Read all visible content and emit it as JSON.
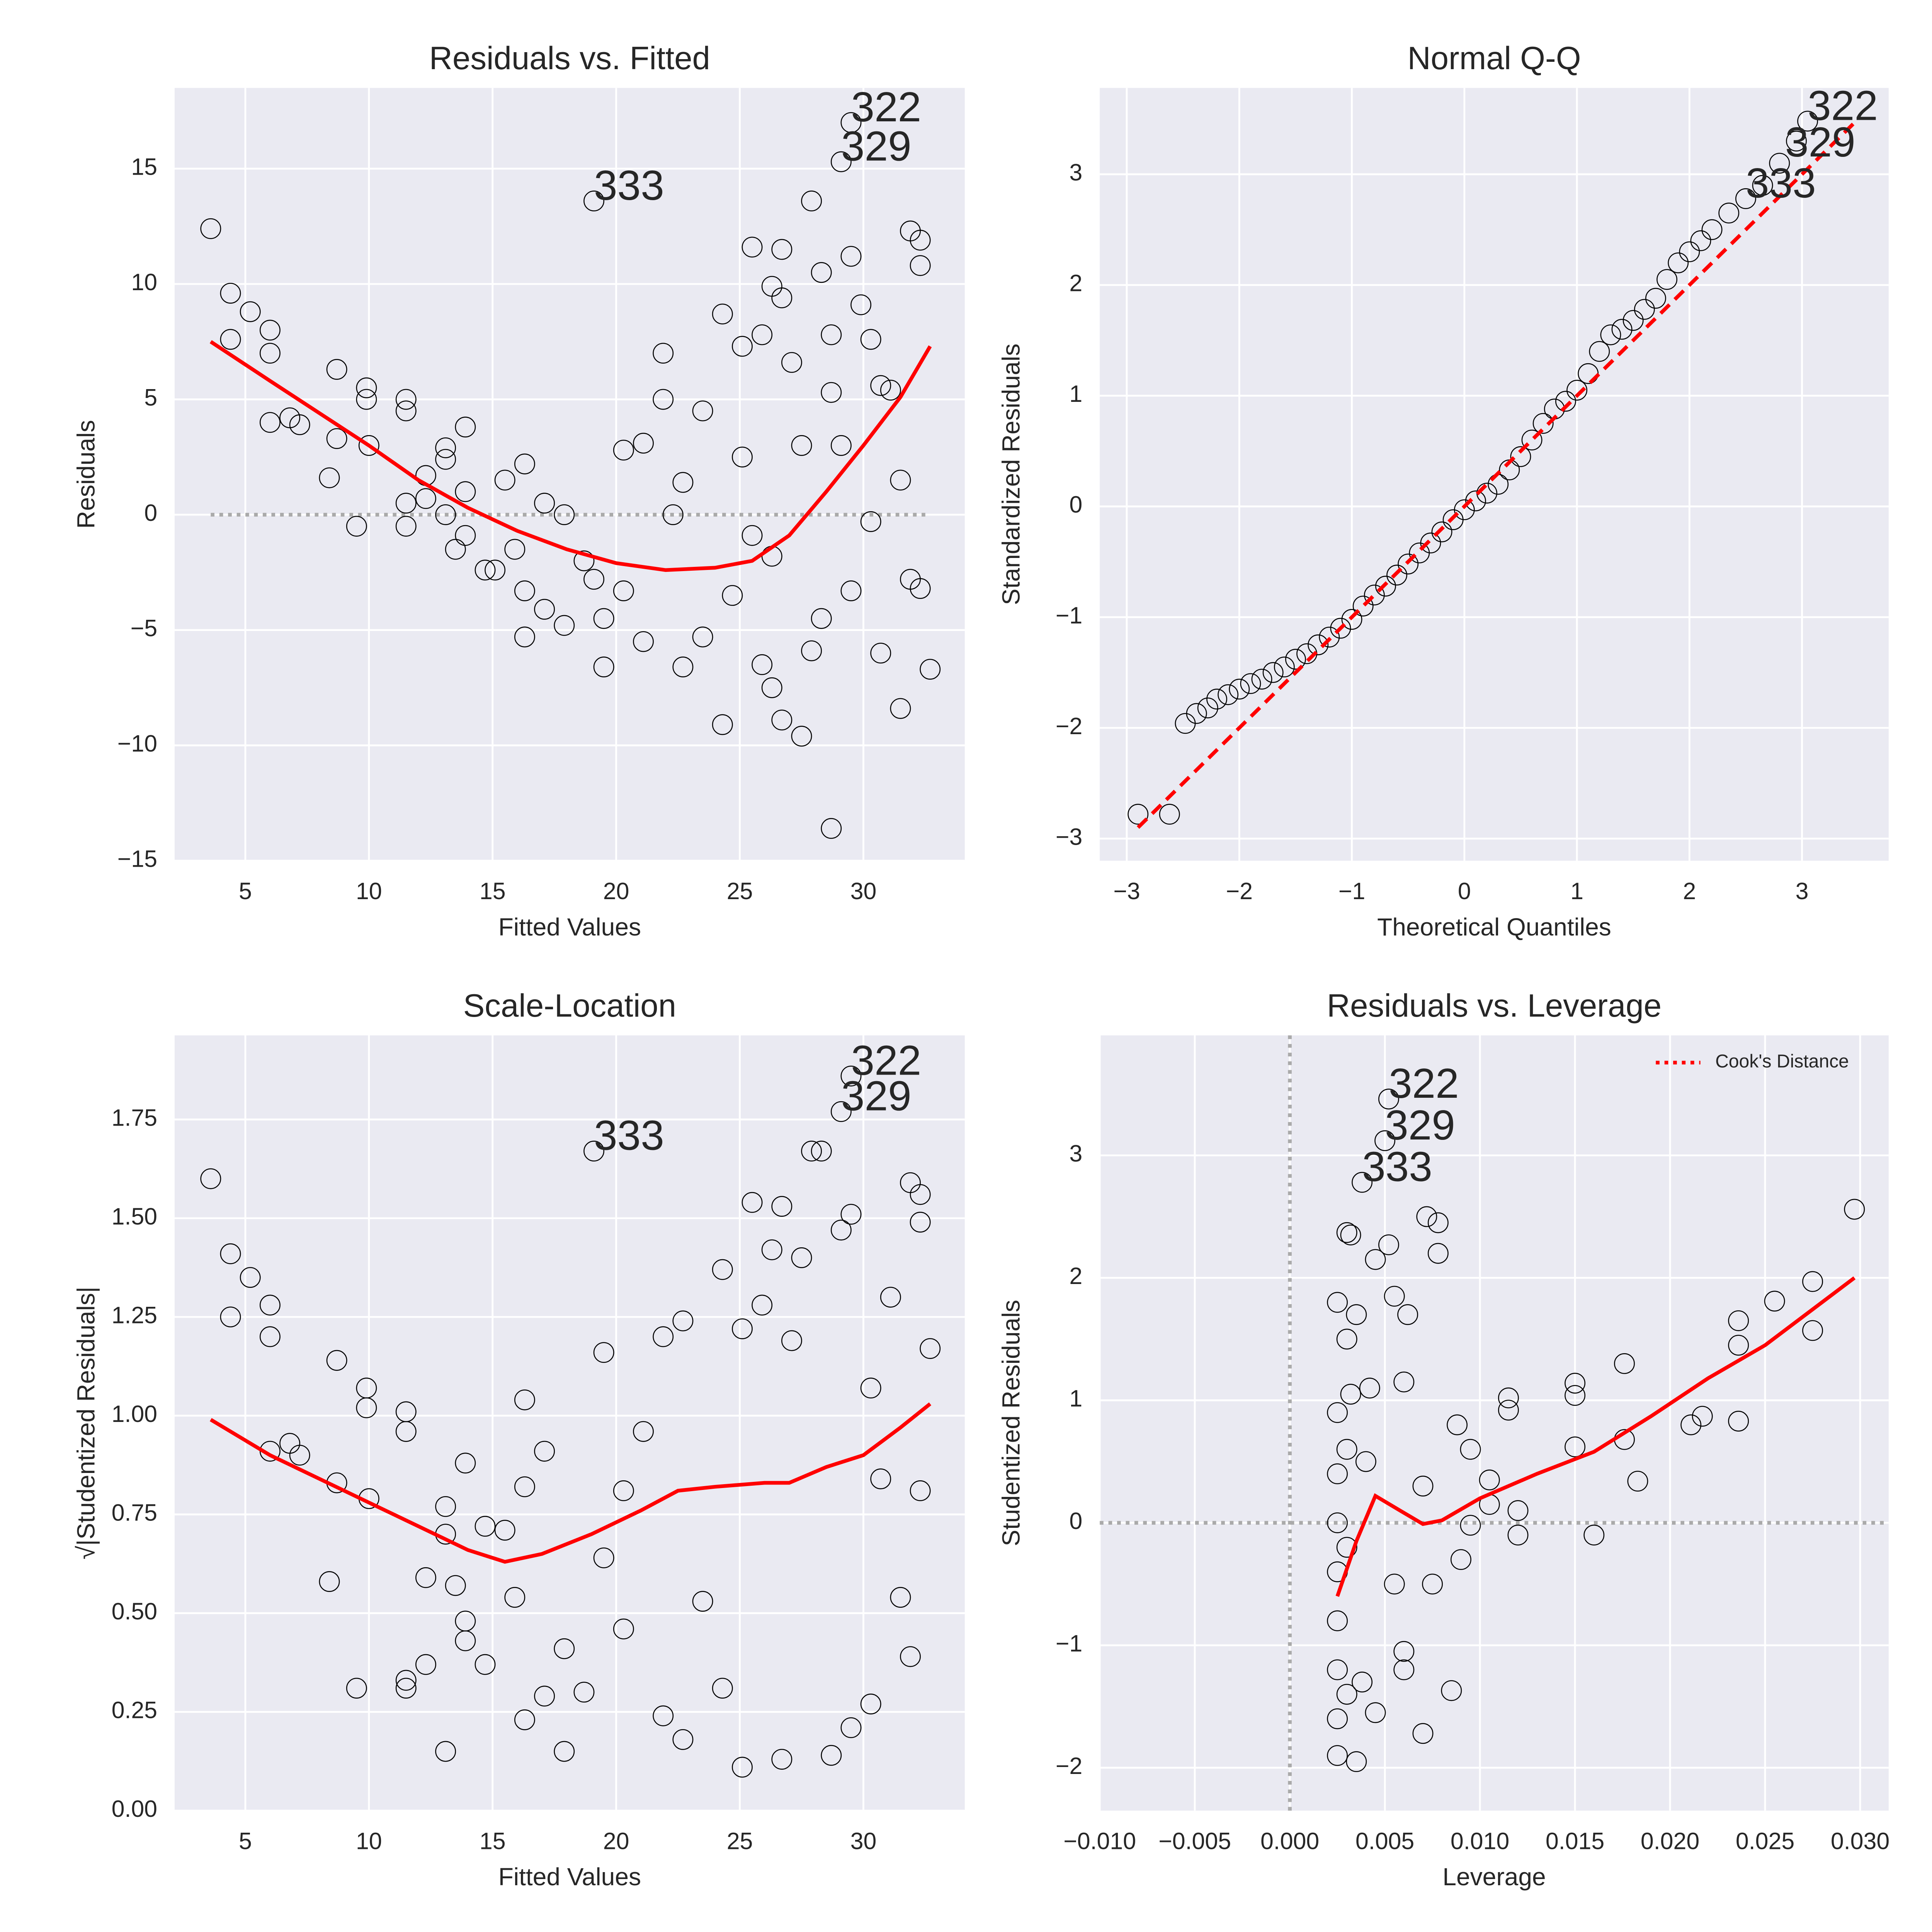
{
  "chart_data": [
    {
      "type": "scatter",
      "title": "Residuals vs. Fitted",
      "xlabel": "Fitted Values",
      "ylabel": "Residuals",
      "xlim": [
        2.14,
        34.1
      ],
      "ylim": [
        -15,
        18.5
      ],
      "xticks": [
        5,
        10,
        15,
        20,
        25,
        30
      ],
      "yticks": [
        {
          "value": -15,
          "label": "−15"
        },
        {
          "value": -10,
          "label": "−10"
        },
        {
          "value": -5,
          "label": "−5"
        },
        0,
        5,
        10,
        15
      ],
      "grid": true,
      "points": {
        "edgecolor": "#000000",
        "x": [
          3.6,
          4.4,
          4.4,
          5.2,
          6,
          6,
          6,
          6.8,
          7.2,
          8.4,
          8.7,
          8.7,
          9.5,
          9.9,
          9.9,
          10,
          11.5,
          11.5,
          11.5,
          11.5,
          12.3,
          12.3,
          13.1,
          13.1,
          13.1,
          13.5,
          13.9,
          13.9,
          13.9,
          14.7,
          15.1,
          15.5,
          15.9,
          16.3,
          16.3,
          16.3,
          17.1,
          17.1,
          17.9,
          17.9,
          18.7,
          19.1,
          19.1,
          19.5,
          19.5,
          20.3,
          20.3,
          21.1,
          21.1,
          21.9,
          21.9,
          22.3,
          22.7,
          22.7,
          23.5,
          23.5,
          24.3,
          24.3,
          24.7,
          25.1,
          25.1,
          25.5,
          25.5,
          25.9,
          25.9,
          26.3,
          26.3,
          26.7,
          26.7,
          26.7,
          27.1,
          27.5,
          27.9,
          27.9,
          28.3,
          28.3,
          28.7,
          28.7,
          29.1,
          29.1,
          29.5,
          29.5,
          29.5,
          30.3,
          30.3,
          30.7,
          31.1,
          31.5,
          31.5,
          31.9,
          31.9,
          32.3,
          32.3,
          32.7,
          32.3,
          30.7,
          29.9,
          28.7,
          27.5,
          26.3
        ],
        "y": [
          12.4,
          9.6,
          7.6,
          8.8,
          8,
          7,
          4,
          4.2,
          3.9,
          1.6,
          6.3,
          3.3,
          -0.5,
          5.5,
          5,
          3,
          5,
          4.5,
          0.5,
          -0.5,
          0.7,
          1.7,
          2.9,
          2.4,
          0,
          -1.5,
          3.8,
          1,
          -0.9,
          -2.4,
          -2.4,
          1.5,
          -1.5,
          2.2,
          -3.3,
          -5.3,
          0.5,
          -4.1,
          -4.8,
          0,
          -2,
          13.6,
          -2.8,
          -6.6,
          -4.5,
          2.8,
          -3.3,
          -5.5,
          3.1,
          7,
          5,
          0,
          -6.6,
          1.4,
          4.5,
          -5.3,
          8.7,
          -9.1,
          -3.5,
          7.3,
          2.5,
          11.6,
          -0.9,
          7.8,
          -6.5,
          9.9,
          -7.5,
          9.4,
          -8.9,
          11.5,
          6.6,
          -9.6,
          13.6,
          -5.9,
          10.5,
          -4.5,
          -13.6,
          7.8,
          15.3,
          3,
          11.2,
          17,
          -3.3,
          7.6,
          -0.3,
          -6,
          5.4,
          -8.4,
          1.5,
          12.3,
          -2.8,
          -3.2,
          11.9,
          -6.7,
          10.8,
          5.6,
          9.1,
          5.3,
          3,
          -1.8
        ]
      },
      "lines": [
        {
          "color": "#ff0000",
          "style": "solid",
          "x": [
            3.6,
            6,
            8,
            10,
            12,
            14,
            16,
            18,
            20,
            22,
            24,
            25.5,
            27,
            28.5,
            30,
            31.5,
            32.7
          ],
          "y": [
            7.5,
            5.8,
            4.4,
            3,
            1.5,
            0.3,
            -0.7,
            -1.5,
            -2.1,
            -2.4,
            -2.3,
            -2,
            -0.9,
            1,
            3,
            5.1,
            7.3
          ]
        }
      ],
      "hlines": [
        {
          "y": 0,
          "xrange": [
            3.6,
            32.7
          ],
          "color": "#aaaaaa",
          "style": "dotted"
        }
      ],
      "annotations": [
        {
          "text": "322",
          "x": 29.5,
          "y": 17
        },
        {
          "text": "329",
          "x": 29.1,
          "y": 15.3
        },
        {
          "text": "333",
          "x": 19.1,
          "y": 13.6
        }
      ]
    },
    {
      "type": "scatter",
      "title": "Normal Q-Q",
      "xlabel": "Theoretical Quantiles",
      "ylabel": "Standardized Residuals",
      "xlim": [
        -3.24,
        3.77
      ],
      "ylim": [
        -3.2,
        3.78
      ],
      "xticks": [
        {
          "value": -3,
          "label": "−3"
        },
        {
          "value": -2,
          "label": "−2"
        },
        {
          "value": -1,
          "label": "−1"
        },
        0,
        1,
        2,
        3
      ],
      "yticks": [
        {
          "value": -3,
          "label": "−3"
        },
        {
          "value": -2,
          "label": "−2"
        },
        {
          "value": -1,
          "label": "−1"
        },
        0,
        1,
        2,
        3
      ],
      "grid": true,
      "points": {
        "edgecolor": "#000000",
        "x": [
          -2.9,
          -2.62,
          -2.48,
          -2.38,
          -2.28,
          -2.2,
          -2.1,
          -2,
          -1.9,
          -1.8,
          -1.7,
          -1.6,
          -1.5,
          -1.4,
          -1.3,
          -1.2,
          -1.1,
          -1,
          -0.9,
          -0.8,
          -0.7,
          -0.6,
          -0.5,
          -0.4,
          -0.3,
          -0.2,
          -0.1,
          0,
          0.1,
          0.2,
          0.3,
          0.4,
          0.5,
          0.6,
          0.7,
          0.8,
          0.9,
          1,
          1.1,
          1.2,
          1.3,
          1.4,
          1.5,
          1.6,
          1.7,
          1.8,
          1.9,
          2,
          2.1,
          2.2,
          2.35,
          2.5,
          2.65,
          2.8,
          2.95,
          3.05
        ],
        "y": [
          -2.78,
          -2.78,
          -1.96,
          -1.87,
          -1.82,
          -1.74,
          -1.7,
          -1.65,
          -1.6,
          -1.56,
          -1.5,
          -1.45,
          -1.38,
          -1.33,
          -1.25,
          -1.18,
          -1.1,
          -1.02,
          -0.9,
          -0.8,
          -0.72,
          -0.62,
          -0.52,
          -0.42,
          -0.33,
          -0.23,
          -0.12,
          -0.03,
          0.05,
          0.12,
          0.2,
          0.33,
          0.45,
          0.6,
          0.75,
          0.88,
          0.95,
          1.05,
          1.2,
          1.4,
          1.55,
          1.6,
          1.68,
          1.78,
          1.88,
          2.05,
          2.2,
          2.3,
          2.4,
          2.5,
          2.65,
          2.78,
          2.9,
          3.1,
          3.3,
          3.48
        ]
      },
      "lines": [
        {
          "color": "#ff0000",
          "style": "dashed",
          "x": [
            -2.9,
            3.5
          ],
          "y": [
            -2.9,
            3.5
          ]
        }
      ],
      "annotations": [
        {
          "text": "322",
          "x": 3.05,
          "y": 3.48
        },
        {
          "text": "329",
          "x": 2.85,
          "y": 3.15
        },
        {
          "text": "333",
          "x": 2.5,
          "y": 2.78
        }
      ]
    },
    {
      "type": "scatter",
      "title": "Scale-Location",
      "xlabel": "Fitted Values",
      "ylabel": "√|Studentized Residuals|",
      "xlim": [
        2.14,
        34.1
      ],
      "ylim": [
        0,
        1.963
      ],
      "xticks": [
        5,
        10,
        15,
        20,
        25,
        30
      ],
      "yticks": [
        {
          "value": 0,
          "label": "0.00"
        },
        0.25,
        {
          "value": 0.5,
          "label": "0.50"
        },
        0.75,
        {
          "value": 1,
          "label": "1.00"
        },
        1.25,
        {
          "value": 1.5,
          "label": "1.50"
        },
        1.75
      ],
      "grid": true,
      "points": {
        "edgecolor": "#000000",
        "x": [
          3.6,
          4.4,
          4.4,
          5.2,
          6,
          6,
          6,
          6.8,
          7.2,
          8.4,
          8.7,
          8.7,
          9.5,
          9.9,
          9.9,
          10,
          11.5,
          11.5,
          11.5,
          11.5,
          12.3,
          12.3,
          13.1,
          13.1,
          13.1,
          13.5,
          13.9,
          13.9,
          13.9,
          14.7,
          14.7,
          15.5,
          15.9,
          16.3,
          16.3,
          16.3,
          17.1,
          17.1,
          17.9,
          17.9,
          18.7,
          19.1,
          19.5,
          19.5,
          20.3,
          20.3,
          21.1,
          21.9,
          21.9,
          22.7,
          22.7,
          23.5,
          24.3,
          24.3,
          25.1,
          25.1,
          25.5,
          25.9,
          26.3,
          26.7,
          26.7,
          27.1,
          27.5,
          27.9,
          28.3,
          28.7,
          29.1,
          29.1,
          29.5,
          29.5,
          29.5,
          30.3,
          30.7,
          31.1,
          31.5,
          31.9,
          31.9,
          32.3,
          32.3,
          32.7,
          32.3,
          30.3
        ],
        "y": [
          1.6,
          1.41,
          1.25,
          1.35,
          1.28,
          1.2,
          0.91,
          0.93,
          0.9,
          0.58,
          1.14,
          0.83,
          0.31,
          1.07,
          1.02,
          0.79,
          1.01,
          0.96,
          0.33,
          0.31,
          0.37,
          0.59,
          0.77,
          0.7,
          0.15,
          0.57,
          0.88,
          0.48,
          0.43,
          0.72,
          0.37,
          0.71,
          0.54,
          1.04,
          0.23,
          0.82,
          0.91,
          0.29,
          0.41,
          0.15,
          0.3,
          1.67,
          1.16,
          0.64,
          0.46,
          0.81,
          0.96,
          1.2,
          0.24,
          1.24,
          0.18,
          0.53,
          1.37,
          0.31,
          1.22,
          0.11,
          1.54,
          1.28,
          1.42,
          1.53,
          0.13,
          1.19,
          1.4,
          1.67,
          1.67,
          0.14,
          1.47,
          1.77,
          1.86,
          1.51,
          0.21,
          1.07,
          0.84,
          1.3,
          0.54,
          1.59,
          0.39,
          1.56,
          1.49,
          1.17,
          0.81,
          0.27
        ]
      },
      "lines": [
        {
          "color": "#ff0000",
          "style": "solid",
          "x": [
            3.6,
            6,
            8,
            10,
            12,
            14,
            15.5,
            17,
            19,
            21,
            22.5,
            24,
            26,
            27,
            28.5,
            30,
            31.5,
            32.7
          ],
          "y": [
            0.99,
            0.9,
            0.84,
            0.78,
            0.72,
            0.66,
            0.63,
            0.65,
            0.7,
            0.76,
            0.81,
            0.82,
            0.83,
            0.83,
            0.87,
            0.9,
            0.97,
            1.03
          ]
        }
      ],
      "annotations": [
        {
          "text": "322",
          "x": 29.5,
          "y": 1.86
        },
        {
          "text": "329",
          "x": 29.1,
          "y": 1.77
        },
        {
          "text": "333",
          "x": 19.1,
          "y": 1.67
        }
      ]
    },
    {
      "type": "scatter",
      "title": "Residuals vs. Leverage",
      "xlabel": "Leverage",
      "ylabel": "Studentized Residuals",
      "xlim": [
        -0.01,
        0.0315
      ],
      "ylim": [
        -2.35,
        3.98
      ],
      "xticks": [
        {
          "value": -0.01,
          "label": "−0.010"
        },
        {
          "value": -0.005,
          "label": "−0.005"
        },
        {
          "value": 0,
          "label": "0.000"
        },
        0.005,
        {
          "value": 0.01,
          "label": "0.010"
        },
        0.015,
        {
          "value": 0.02,
          "label": "0.020"
        },
        0.025,
        {
          "value": 0.03,
          "label": "0.030"
        }
      ],
      "yticks": [
        {
          "value": -2,
          "label": "−2"
        },
        {
          "value": -1,
          "label": "−1"
        },
        0,
        1,
        2,
        3
      ],
      "grid": true,
      "points": {
        "edgecolor": "#000000",
        "x": [
          0.0025,
          0.0025,
          0.0025,
          0.0025,
          0.0025,
          0.0025,
          0.0025,
          0.0025,
          0.0025,
          0.003,
          0.003,
          0.003,
          0.003,
          0.003,
          0.0032,
          0.0032,
          0.0035,
          0.0035,
          0.0038,
          0.0038,
          0.004,
          0.0042,
          0.0045,
          0.0045,
          0.005,
          0.0052,
          0.0052,
          0.0055,
          0.0055,
          0.006,
          0.006,
          0.0062,
          0.006,
          0.007,
          0.007,
          0.0072,
          0.0075,
          0.0078,
          0.0078,
          0.0085,
          0.0088,
          0.009,
          0.0095,
          0.0095,
          0.0105,
          0.0105,
          0.0115,
          0.0115,
          0.012,
          0.012,
          0.015,
          0.015,
          0.015,
          0.016,
          0.0176,
          0.0176,
          0.0183,
          0.0211,
          0.0217,
          0.0236,
          0.0236,
          0.0236,
          0.0255,
          0.0275,
          0.0275,
          0.0297
        ],
        "y": [
          -1.9,
          -1.6,
          -1.2,
          -0.8,
          -0.4,
          0,
          0.4,
          0.9,
          1.8,
          2.37,
          1.5,
          -1.4,
          0.6,
          -0.2,
          2.35,
          1.05,
          -1.95,
          1.7,
          2.78,
          -1.3,
          0.5,
          1.1,
          2.15,
          -1.55,
          3.12,
          3.46,
          2.27,
          1.85,
          -0.5,
          1.15,
          -1.2,
          1.7,
          -1.05,
          0.3,
          -1.72,
          2.5,
          -0.5,
          2.45,
          2.2,
          -1.37,
          0.8,
          -0.3,
          0.6,
          -0.02,
          0.35,
          0.15,
          1.02,
          0.92,
          0.1,
          -0.1,
          1.14,
          1.04,
          0.62,
          -0.1,
          1.3,
          0.68,
          0.34,
          0.8,
          0.87,
          1.65,
          1.45,
          0.83,
          1.81,
          1.97,
          1.57,
          2.56
        ]
      },
      "lines": [
        {
          "color": "#ff0000",
          "style": "solid",
          "x": [
            0.0025,
            0.0035,
            0.0045,
            0.0058,
            0.007,
            0.008,
            0.01,
            0.013,
            0.016,
            0.019,
            0.022,
            0.025,
            0.0297
          ],
          "y": [
            -0.6,
            -0.15,
            0.22,
            0.1,
            -0.01,
            0.02,
            0.2,
            0.4,
            0.58,
            0.87,
            1.18,
            1.45,
            2
          ]
        }
      ],
      "hlines": [
        {
          "y": 0,
          "color": "#aaaaaa",
          "style": "dotted"
        }
      ],
      "vlines": [
        {
          "x": 0,
          "color": "#aaaaaa",
          "style": "dotted"
        }
      ],
      "legend": {
        "position": "upper right",
        "entries": [
          {
            "name": "Cook's Distance",
            "color": "#ff0000",
            "style": "dotted"
          }
        ]
      },
      "annotations": [
        {
          "text": "322",
          "x": 0.0052,
          "y": 3.46
        },
        {
          "text": "329",
          "x": 0.005,
          "y": 3.12
        },
        {
          "text": "333",
          "x": 0.0038,
          "y": 2.78
        }
      ]
    }
  ]
}
